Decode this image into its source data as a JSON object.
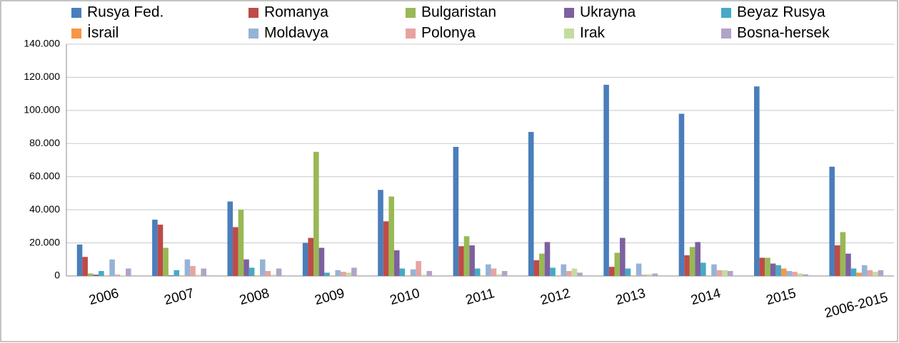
{
  "chart_data": {
    "type": "bar",
    "legend": "top",
    "grid": true,
    "categories": [
      "2006",
      "2007",
      "2008",
      "2009",
      "2010",
      "2011",
      "2012",
      "2013",
      "2014",
      "2015",
      "2006-2015"
    ],
    "ylim": [
      0,
      140000
    ],
    "yticks": [
      0,
      {
        "value": 20000,
        "label": "20.000"
      },
      {
        "value": 40000,
        "label": "40.000"
      },
      {
        "value": 60000,
        "label": "60.000"
      },
      {
        "value": 80000,
        "label": "80.000"
      },
      {
        "value": 100000,
        "label": "100.000"
      },
      {
        "value": 120000,
        "label": "120.000"
      },
      {
        "value": 140000,
        "label": "140.000"
      }
    ],
    "series": [
      {
        "name": "Rusya Fed.",
        "color": "#4a7ebb",
        "values": [
          19000,
          34000,
          45000,
          20000,
          52000,
          78000,
          87000,
          115500,
          98000,
          114500,
          66000
        ]
      },
      {
        "name": "Romanya",
        "color": "#be4b48",
        "values": [
          11500,
          31000,
          29500,
          23000,
          33000,
          18000,
          9500,
          5500,
          12500,
          11000,
          18500
        ]
      },
      {
        "name": "Bulgaristan",
        "color": "#98b954",
        "values": [
          1500,
          17000,
          40000,
          75000,
          48000,
          24000,
          13500,
          14000,
          17500,
          11000,
          26500
        ]
      },
      {
        "name": "Ukrayna",
        "color": "#7d60a0",
        "values": [
          800,
          400,
          10000,
          17000,
          15500,
          18500,
          20500,
          23000,
          20500,
          7500,
          13500
        ]
      },
      {
        "name": "Beyaz Rusya",
        "color": "#46aac5",
        "values": [
          3000,
          3500,
          5000,
          2000,
          4500,
          4500,
          5000,
          4500,
          8000,
          6500,
          4500
        ]
      },
      {
        "name": "İsrail",
        "color": "#f79646",
        "values": [
          300,
          300,
          300,
          300,
          300,
          300,
          300,
          300,
          300,
          4500,
          2000
        ]
      },
      {
        "name": "Moldavya",
        "color": "#95b3d7",
        "values": [
          10000,
          10000,
          10000,
          3500,
          4000,
          7000,
          7000,
          7500,
          7000,
          3000,
          6500
        ]
      },
      {
        "name": "Polonya",
        "color": "#e6a3a2",
        "values": [
          800,
          6000,
          3000,
          2500,
          9000,
          4500,
          3000,
          800,
          3500,
          2500,
          3500
        ]
      },
      {
        "name": "Irak",
        "color": "#c5dca0",
        "values": [
          300,
          700,
          700,
          2000,
          700,
          1000,
          4500,
          1000,
          3500,
          1500,
          2500
        ]
      },
      {
        "name": "Bosna-hersek",
        "color": "#b3a2c7",
        "values": [
          4500,
          4500,
          4500,
          5000,
          3000,
          3000,
          2000,
          1500,
          3000,
          1000,
          3500
        ]
      }
    ]
  }
}
